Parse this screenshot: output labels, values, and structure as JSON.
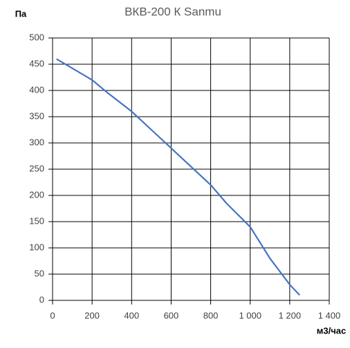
{
  "chart_data": {
    "type": "line",
    "title": "ВКВ-200 К Sanmu",
    "y_label": "Па",
    "x_label": "м3/час",
    "series": [
      {
        "name": "ВКВ-200 К",
        "color": "#4472c4",
        "x": [
          20,
          200,
          280,
          400,
          500,
          600,
          700,
          800,
          880,
          1000,
          1100,
          1200,
          1250
        ],
        "values": [
          460,
          420,
          395,
          360,
          325,
          290,
          255,
          220,
          185,
          140,
          80,
          30,
          10
        ]
      }
    ],
    "xlim": [
      0,
      1400
    ],
    "ylim": [
      0,
      500
    ],
    "xticks": [
      0,
      200,
      400,
      600,
      800,
      {
        "value": 1000,
        "label": "1 000"
      },
      {
        "value": 1200,
        "label": "1 200"
      },
      {
        "value": 1400,
        "label": "1 400"
      }
    ],
    "yticks": [
      0,
      50,
      100,
      150,
      200,
      250,
      300,
      350,
      400,
      450,
      500
    ],
    "grid": true
  }
}
